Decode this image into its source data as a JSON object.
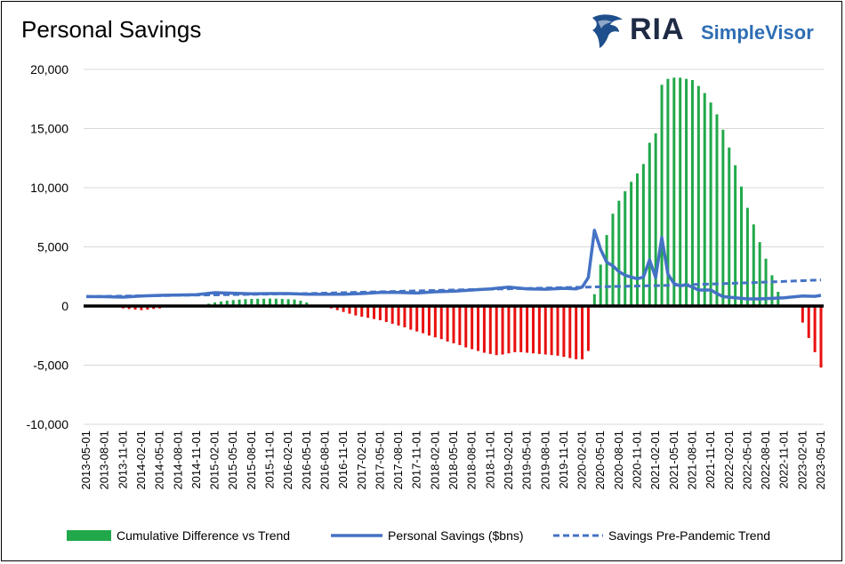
{
  "header": {
    "title": "Personal Savings",
    "logo_ria": "RIA",
    "logo_simplevisor": "SimpleVisor"
  },
  "colors": {
    "positive_bar": "#21a84a",
    "negative_bar": "#e8100f",
    "savings_line": "#4472c4",
    "trend_line": "#4472c4",
    "zero_line": "#000000",
    "grid": "#d9d9d9"
  },
  "chart_data": {
    "type": "bar",
    "title": "Personal Savings",
    "xlabel": "",
    "ylabel": "",
    "ylim": [
      -10000,
      20000
    ],
    "yticks": [
      20000,
      15000,
      10000,
      5000,
      0,
      -5000,
      -10000
    ],
    "ytick_labels": [
      "20,000",
      "15,000",
      "10,000",
      "5,000",
      "0",
      "-5,000",
      "-10,000"
    ],
    "grid": true,
    "legend_position": "bottom",
    "x_start": "2013-05",
    "x_end": "2023-05",
    "tick_labels": [
      "2013-05-01",
      "2013-08-01",
      "2013-11-01",
      "2014-02-01",
      "2014-05-01",
      "2014-08-01",
      "2014-11-01",
      "2015-02-01",
      "2015-05-01",
      "2015-08-01",
      "2015-11-01",
      "2016-02-01",
      "2016-05-01",
      "2016-08-01",
      "2016-11-01",
      "2017-02-01",
      "2017-05-01",
      "2017-08-01",
      "2017-11-01",
      "2018-02-01",
      "2018-05-01",
      "2018-08-01",
      "2018-11-01",
      "2019-02-01",
      "2019-05-01",
      "2019-08-01",
      "2019-11-01",
      "2020-02-01",
      "2020-05-01",
      "2020-08-01",
      "2020-11-01",
      "2021-02-01",
      "2021-05-01",
      "2021-08-01",
      "2021-11-01",
      "2022-02-01",
      "2022-05-01",
      "2022-08-01",
      "2022-11-01",
      "2023-02-01",
      "2023-05-01"
    ],
    "series": [
      {
        "name": "Cumulative Difference vs Trend",
        "kind": "bar",
        "points": [
          [
            "2013-11",
            -200
          ],
          [
            "2013-12",
            -250
          ],
          [
            "2014-01",
            -300
          ],
          [
            "2014-02",
            -350
          ],
          [
            "2014-03",
            -300
          ],
          [
            "2014-04",
            -250
          ],
          [
            "2014-05",
            -200
          ],
          [
            "2014-12",
            80
          ],
          [
            "2015-01",
            200
          ],
          [
            "2015-02",
            300
          ],
          [
            "2015-03",
            380
          ],
          [
            "2015-04",
            450
          ],
          [
            "2015-05",
            500
          ],
          [
            "2015-06",
            550
          ],
          [
            "2015-07",
            580
          ],
          [
            "2015-08",
            600
          ],
          [
            "2015-09",
            620
          ],
          [
            "2015-10",
            620
          ],
          [
            "2015-11",
            630
          ],
          [
            "2015-12",
            620
          ],
          [
            "2016-01",
            600
          ],
          [
            "2016-02",
            580
          ],
          [
            "2016-03",
            550
          ],
          [
            "2016-04",
            450
          ],
          [
            "2016-05",
            300
          ],
          [
            "2016-06",
            100
          ],
          [
            "2016-08",
            -100
          ],
          [
            "2016-09",
            -200
          ],
          [
            "2016-10",
            -350
          ],
          [
            "2016-11",
            -500
          ],
          [
            "2016-12",
            -650
          ],
          [
            "2017-01",
            -800
          ],
          [
            "2017-02",
            -900
          ],
          [
            "2017-03",
            -1000
          ],
          [
            "2017-04",
            -1100
          ],
          [
            "2017-05",
            -1200
          ],
          [
            "2017-06",
            -1350
          ],
          [
            "2017-07",
            -1500
          ],
          [
            "2017-08",
            -1650
          ],
          [
            "2017-09",
            -1800
          ],
          [
            "2017-10",
            -2000
          ],
          [
            "2017-11",
            -2150
          ],
          [
            "2017-12",
            -2300
          ],
          [
            "2018-01",
            -2500
          ],
          [
            "2018-02",
            -2650
          ],
          [
            "2018-03",
            -2800
          ],
          [
            "2018-04",
            -3000
          ],
          [
            "2018-05",
            -3150
          ],
          [
            "2018-06",
            -3300
          ],
          [
            "2018-07",
            -3500
          ],
          [
            "2018-08",
            -3650
          ],
          [
            "2018-09",
            -3800
          ],
          [
            "2018-10",
            -3950
          ],
          [
            "2018-11",
            -4050
          ],
          [
            "2018-12",
            -4150
          ],
          [
            "2019-01",
            -4100
          ],
          [
            "2019-02",
            -4000
          ],
          [
            "2019-03",
            -3900
          ],
          [
            "2019-04",
            -3900
          ],
          [
            "2019-05",
            -3950
          ],
          [
            "2019-06",
            -4000
          ],
          [
            "2019-07",
            -4050
          ],
          [
            "2019-08",
            -4100
          ],
          [
            "2019-09",
            -4150
          ],
          [
            "2019-10",
            -4200
          ],
          [
            "2019-11",
            -4300
          ],
          [
            "2019-12",
            -4400
          ],
          [
            "2020-01",
            -4500
          ],
          [
            "2020-02",
            -4500
          ],
          [
            "2020-03",
            -3800
          ],
          [
            "2020-04",
            1000
          ],
          [
            "2020-05",
            3500
          ],
          [
            "2020-06",
            6000
          ],
          [
            "2020-07",
            7800
          ],
          [
            "2020-08",
            8900
          ],
          [
            "2020-09",
            9700
          ],
          [
            "2020-10",
            10500
          ],
          [
            "2020-11",
            11200
          ],
          [
            "2020-12",
            12000
          ],
          [
            "2021-01",
            13800
          ],
          [
            "2021-02",
            14600
          ],
          [
            "2021-03",
            18700
          ],
          [
            "2021-04",
            19200
          ],
          [
            "2021-05",
            19300
          ],
          [
            "2021-06",
            19300
          ],
          [
            "2021-07",
            19200
          ],
          [
            "2021-08",
            19100
          ],
          [
            "2021-09",
            18600
          ],
          [
            "2021-10",
            18000
          ],
          [
            "2021-11",
            17200
          ],
          [
            "2021-12",
            16200
          ],
          [
            "2022-01",
            14900
          ],
          [
            "2022-02",
            13400
          ],
          [
            "2022-03",
            11900
          ],
          [
            "2022-04",
            10100
          ],
          [
            "2022-05",
            8300
          ],
          [
            "2022-06",
            6900
          ],
          [
            "2022-07",
            5400
          ],
          [
            "2022-08",
            4000
          ],
          [
            "2022-09",
            2600
          ],
          [
            "2022-10",
            1200
          ],
          [
            "2023-02",
            -1400
          ],
          [
            "2023-03",
            -2700
          ],
          [
            "2023-04",
            -3900
          ],
          [
            "2023-05",
            -5200
          ]
        ]
      },
      {
        "name": "Personal Savings ($bns)",
        "kind": "line",
        "points": [
          [
            "2013-05",
            800
          ],
          [
            "2013-08",
            790
          ],
          [
            "2013-11",
            750
          ],
          [
            "2014-02",
            850
          ],
          [
            "2014-05",
            900
          ],
          [
            "2014-08",
            930
          ],
          [
            "2014-11",
            960
          ],
          [
            "2015-02",
            1130
          ],
          [
            "2015-05",
            1080
          ],
          [
            "2015-08",
            1030
          ],
          [
            "2015-11",
            1050
          ],
          [
            "2016-02",
            1050
          ],
          [
            "2016-05",
            1000
          ],
          [
            "2016-08",
            990
          ],
          [
            "2016-11",
            1000
          ],
          [
            "2017-02",
            1050
          ],
          [
            "2017-05",
            1150
          ],
          [
            "2017-08",
            1150
          ],
          [
            "2017-11",
            1100
          ],
          [
            "2018-02",
            1200
          ],
          [
            "2018-05",
            1250
          ],
          [
            "2018-08",
            1350
          ],
          [
            "2018-11",
            1450
          ],
          [
            "2019-02",
            1600
          ],
          [
            "2019-05",
            1450
          ],
          [
            "2019-08",
            1420
          ],
          [
            "2019-11",
            1500
          ],
          [
            "2020-01",
            1450
          ],
          [
            "2020-02",
            1600
          ],
          [
            "2020-03",
            2400
          ],
          [
            "2020-04",
            6400
          ],
          [
            "2020-05",
            4800
          ],
          [
            "2020-06",
            3700
          ],
          [
            "2020-07",
            3400
          ],
          [
            "2020-08",
            2900
          ],
          [
            "2020-09",
            2600
          ],
          [
            "2020-10",
            2450
          ],
          [
            "2020-11",
            2300
          ],
          [
            "2020-12",
            2450
          ],
          [
            "2021-01",
            3900
          ],
          [
            "2021-02",
            2400
          ],
          [
            "2021-03",
            5800
          ],
          [
            "2021-04",
            2700
          ],
          [
            "2021-05",
            1900
          ],
          [
            "2021-06",
            1700
          ],
          [
            "2021-07",
            1800
          ],
          [
            "2021-08",
            1600
          ],
          [
            "2021-09",
            1350
          ],
          [
            "2021-10",
            1350
          ],
          [
            "2021-11",
            1350
          ],
          [
            "2021-12",
            1050
          ],
          [
            "2022-01",
            800
          ],
          [
            "2022-03",
            700
          ],
          [
            "2022-05",
            600
          ],
          [
            "2022-07",
            600
          ],
          [
            "2022-09",
            650
          ],
          [
            "2022-11",
            700
          ],
          [
            "2023-02",
            850
          ],
          [
            "2023-04",
            820
          ],
          [
            "2023-05",
            900
          ]
        ]
      },
      {
        "name": "Savings Pre-Pandemic Trend",
        "kind": "dashed-line",
        "points": [
          [
            "2013-05",
            800
          ],
          [
            "2016-05",
            1050
          ],
          [
            "2018-05",
            1350
          ],
          [
            "2020-03",
            1600
          ],
          [
            "2021-05",
            1760
          ],
          [
            "2022-05",
            1960
          ],
          [
            "2023-05",
            2200
          ]
        ]
      }
    ]
  }
}
